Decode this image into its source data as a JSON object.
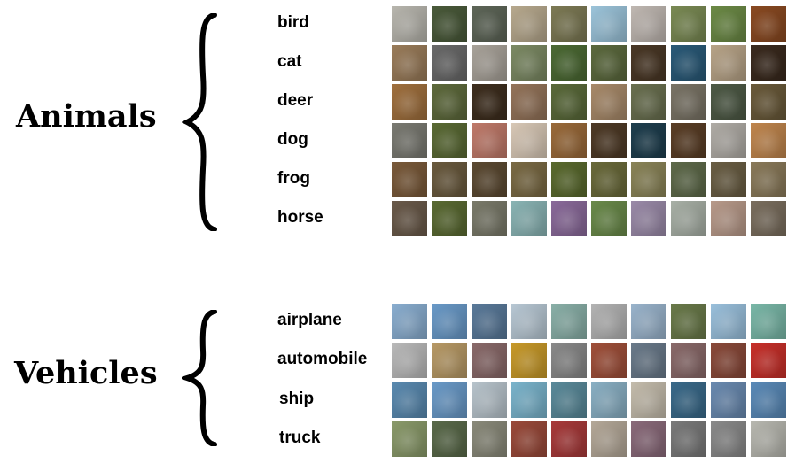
{
  "groups": [
    {
      "title": "Animals",
      "classes": [
        {
          "label": "bird",
          "colors": [
            "#b8b6ae",
            "#4a5a3a",
            "#5e6658",
            "#b7a98e",
            "#7d7a55",
            "#9cc4da",
            "#c0b8b2",
            "#7a8a54",
            "#6c8a46",
            "#8a4a22"
          ]
        },
        {
          "label": "cat",
          "colors": [
            "#9a7c5a",
            "#6a6a6a",
            "#a9a39a",
            "#7c8a64",
            "#4c6a34",
            "#5c6a3e",
            "#4a3826",
            "#2a5a78",
            "#b8a488",
            "#3a2a1e"
          ]
        },
        {
          "label": "deer",
          "colors": [
            "#a0703e",
            "#5e6a3c",
            "#3e2e1e",
            "#94745a",
            "#5a6a3a",
            "#a88a6a",
            "#6a7050",
            "#7a7466",
            "#4e5a46",
            "#6a5a3a"
          ]
        },
        {
          "label": "dog",
          "colors": [
            "#7a7a72",
            "#5a6a34",
            "#c07a6a",
            "#d8c8b6",
            "#9a6a3a",
            "#4e3a26",
            "#1e3e4e",
            "#5a3e26",
            "#b0aca6",
            "#c0864e"
          ]
        },
        {
          "label": "frog",
          "colors": [
            "#7a5a3a",
            "#6a5a3e",
            "#5c4a32",
            "#7a6a44",
            "#5a6a2e",
            "#6a6a3a",
            "#8a8458",
            "#5e6a4a",
            "#6a5e44",
            "#8a7a5a"
          ]
        },
        {
          "label": "horse",
          "colors": [
            "#6a5a4a",
            "#5a6a32",
            "#7a7a6a",
            "#8ab4b4",
            "#8a6a9a",
            "#6a8a4a",
            "#9a8aa8",
            "#a8b0a6",
            "#b89a8a",
            "#7a6e5e"
          ]
        }
      ]
    },
    {
      "title": "Vehicles",
      "classes": [
        {
          "label": "airplane",
          "colors": [
            "#8aaed0",
            "#6a9ac8",
            "#5a7a9a",
            "#b8c8d4",
            "#8ab0a8",
            "#b4b4b4",
            "#9ab4cc",
            "#6a7a4a",
            "#9ac0dc",
            "#7ab8a8"
          ]
        },
        {
          "label": "automobile",
          "colors": [
            "#bababa",
            "#b89a66",
            "#8a6a6a",
            "#c89a2a",
            "#8a8a8a",
            "#a0503a",
            "#6a7a8a",
            "#8a6a6a",
            "#8a4a3a",
            "#c8302a"
          ]
        },
        {
          "label": "ship",
          "colors": [
            "#5a8ab0",
            "#6a9ac8",
            "#b8c4cc",
            "#7ab4cc",
            "#5a8a9a",
            "#8ab0c4",
            "#c4bcac",
            "#3a6a8a",
            "#6a8ab0",
            "#5a8ab8"
          ]
        },
        {
          "label": "truck",
          "colors": [
            "#8a9a6a",
            "#5a6a4a",
            "#8a8a7a",
            "#9a4a3a",
            "#a83a3a",
            "#b4a898",
            "#8a6a7a",
            "#7a7a7a",
            "#8a8a8a",
            "#b8b8b0"
          ]
        }
      ]
    }
  ]
}
